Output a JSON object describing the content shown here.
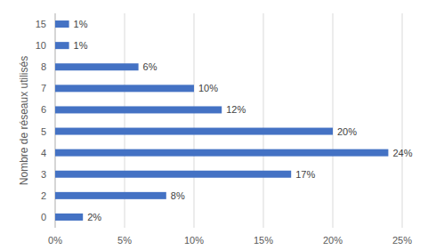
{
  "chart_data": {
    "type": "bar",
    "orientation": "horizontal",
    "y_label": "Nombre de réseaux utilisés",
    "categories": [
      "0",
      "2",
      "3",
      "4",
      "5",
      "6",
      "7",
      "8",
      "10",
      "15"
    ],
    "values": [
      2,
      8,
      17,
      24,
      20,
      12,
      10,
      6,
      1,
      1
    ],
    "value_labels": [
      "2%",
      "8%",
      "17%",
      "24%",
      "20%",
      "12%",
      "10%",
      "6%",
      "1%",
      "1%"
    ],
    "color": "#4472c4",
    "xlim": [
      0,
      25
    ],
    "xticks": [
      {
        "value": 0,
        "label": "0%"
      },
      {
        "value": 5,
        "label": "5%"
      },
      {
        "value": 10,
        "label": "10%"
      },
      {
        "value": 15,
        "label": "15%"
      },
      {
        "value": 20,
        "label": "20%"
      },
      {
        "value": 25,
        "label": "25%"
      }
    ],
    "grid": true,
    "data_labels": true
  }
}
